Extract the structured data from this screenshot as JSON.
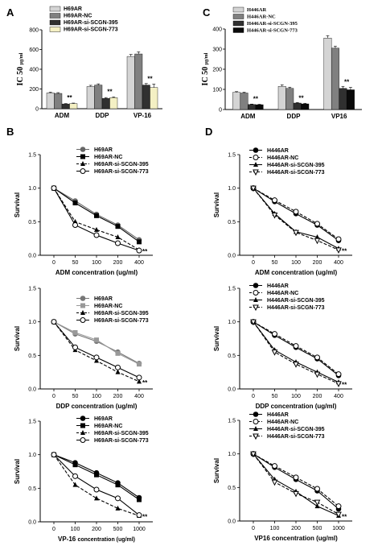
{
  "chart_data": [
    {
      "panel": "A",
      "type": "bar",
      "ylabel_main": "IC 50",
      "ylabel_unit": "μg/ml",
      "ylim": [
        0,
        800
      ],
      "yticks": [
        0,
        200,
        400,
        600,
        800
      ],
      "categories": [
        "ADM",
        "DDP",
        "VP-16"
      ],
      "series": [
        {
          "name": "H69AR",
          "values": [
            160,
            225,
            530
          ],
          "errors": [
            8,
            12,
            20
          ],
          "color": "#d4d4d4"
        },
        {
          "name": "H69AR-NC",
          "values": [
            155,
            240,
            555
          ],
          "errors": [
            8,
            12,
            22
          ],
          "color": "#808080"
        },
        {
          "name": "H69AR-si-SCGN-395",
          "values": [
            48,
            105,
            240
          ],
          "errors": [
            4,
            8,
            15
          ],
          "color": "#303030"
        },
        {
          "name": "H69AR-si-SCGN-773",
          "values": [
            52,
            112,
            215
          ],
          "errors": [
            5,
            8,
            35
          ],
          "color": "#f4f0c4"
        }
      ],
      "annotations": [
        "**",
        "**",
        "**"
      ]
    },
    {
      "panel": "C",
      "type": "bar",
      "ylabel_main": "IC 50",
      "ylabel_unit": "μg/ml",
      "ylim": [
        0,
        400
      ],
      "yticks": [
        0,
        100,
        200,
        300,
        400
      ],
      "categories": [
        "ADM",
        "DDP",
        "VP16"
      ],
      "series": [
        {
          "name": "H446AR",
          "values": [
            85,
            115,
            355
          ],
          "errors": [
            4,
            8,
            12
          ],
          "color": "#d4d4d4"
        },
        {
          "name": "H446AR-NC",
          "values": [
            82,
            105,
            305
          ],
          "errors": [
            4,
            6,
            10
          ],
          "color": "#808080"
        },
        {
          "name": "H446AR-si-SCGN-395",
          "values": [
            25,
            32,
            105
          ],
          "errors": [
            2,
            3,
            10
          ],
          "color": "#303030"
        },
        {
          "name": "H446AR-si-SCGN-773",
          "values": [
            24,
            28,
            98
          ],
          "errors": [
            2,
            3,
            12
          ],
          "color": "#0a0a0a"
        }
      ],
      "annotations": [
        "**",
        "**",
        "**"
      ]
    },
    {
      "panel": "B",
      "type": "line",
      "ylabel": "Survival",
      "xlabel": "ADM concentration (ug/ml)",
      "x": [
        "0",
        "50",
        "100",
        "200",
        "400"
      ],
      "ylim": [
        0,
        1.5
      ],
      "yticks": [
        "0.0",
        "0.5",
        "1.0",
        "1.5"
      ],
      "series": [
        {
          "name": "H69AR",
          "values": [
            1.0,
            0.81,
            0.61,
            0.45,
            0.23
          ],
          "marker": "filled-circle",
          "dash": false,
          "color": "#666666"
        },
        {
          "name": "H69AR-NC",
          "values": [
            1.0,
            0.78,
            0.59,
            0.43,
            0.2
          ],
          "marker": "filled-square",
          "dash": false,
          "color": "#000000"
        },
        {
          "name": "H69AR-si-SCGN-395",
          "values": [
            1.0,
            0.5,
            0.38,
            0.27,
            0.08
          ],
          "marker": "filled-triangle",
          "dash": true,
          "color": "#000000"
        },
        {
          "name": "H69AR-si-SCGN-773",
          "values": [
            1.0,
            0.45,
            0.3,
            0.18,
            0.07
          ],
          "marker": "open-circle",
          "dash": false,
          "color": "#000000"
        }
      ],
      "annotation": "**"
    },
    {
      "type": "line",
      "ylabel": "Survival",
      "xlabel": "DDP concentration (ug/ml)",
      "x": [
        "0",
        "50",
        "100",
        "200",
        "400"
      ],
      "ylim": [
        0,
        1.5
      ],
      "yticks": [
        "0.0",
        "0.5",
        "1.0",
        "1.5"
      ],
      "series": [
        {
          "name": "H69AR",
          "values": [
            1.0,
            0.82,
            0.71,
            0.55,
            0.38
          ],
          "marker": "filled-circle",
          "dash": false,
          "color": "#777777"
        },
        {
          "name": "H69AR-NC",
          "values": [
            1.0,
            0.84,
            0.73,
            0.53,
            0.37
          ],
          "marker": "filled-square",
          "dash": false,
          "color": "#999999"
        },
        {
          "name": "H69AR-si-SCGN-395",
          "values": [
            1.0,
            0.58,
            0.42,
            0.25,
            0.11
          ],
          "marker": "filled-triangle",
          "dash": true,
          "color": "#000000"
        },
        {
          "name": "H69AR-si-SCGN-773",
          "values": [
            1.0,
            0.62,
            0.47,
            0.32,
            0.17
          ],
          "marker": "open-circle",
          "dash": false,
          "color": "#000000"
        }
      ],
      "annotation": "**"
    },
    {
      "type": "line",
      "ylabel": "Survival",
      "xlabel_main": "VP-16",
      "xlabel_rest": "concentration (ug/ml)",
      "x": [
        "0",
        "100",
        "200",
        "500",
        "1000"
      ],
      "ylim": [
        0,
        1.5
      ],
      "yticks": [
        "0.0",
        "0.5",
        "1.0",
        "1.5"
      ],
      "series": [
        {
          "name": "H69AR",
          "values": [
            1.0,
            0.88,
            0.73,
            0.58,
            0.36
          ],
          "marker": "filled-circle",
          "dash": false,
          "color": "#000000"
        },
        {
          "name": "H69AR-NC",
          "values": [
            1.0,
            0.85,
            0.7,
            0.55,
            0.33
          ],
          "marker": "filled-square",
          "dash": false,
          "color": "#000000"
        },
        {
          "name": "H69AR-si-SCGN-395",
          "values": [
            1.0,
            0.55,
            0.35,
            0.2,
            0.09
          ],
          "marker": "filled-triangle",
          "dash": true,
          "color": "#000000"
        },
        {
          "name": "H69AR-si-SCGN-773",
          "values": [
            1.0,
            0.68,
            0.48,
            0.35,
            0.1
          ],
          "marker": "open-circle",
          "dash": false,
          "color": "#000000"
        }
      ],
      "annotation": "**"
    },
    {
      "panel": "D",
      "type": "line",
      "ylabel": "Survival",
      "xlabel": "ADM concentration (ug/ml)",
      "x": [
        "0",
        "50",
        "100",
        "200",
        "400"
      ],
      "ylim": [
        0,
        1.5
      ],
      "yticks": [
        "0.0",
        "0.5",
        "1.0",
        "1.5"
      ],
      "series": [
        {
          "name": "H446AR",
          "values": [
            1.0,
            0.8,
            0.62,
            0.45,
            0.22
          ],
          "marker": "filled-circle",
          "dash": false,
          "color": "#000000"
        },
        {
          "name": "H446AR-NC",
          "values": [
            1.0,
            0.82,
            0.65,
            0.47,
            0.24
          ],
          "marker": "open-circle",
          "dash": true,
          "color": "#000000"
        },
        {
          "name": "H446AR-si-SCGN-395",
          "values": [
            1.0,
            0.62,
            0.35,
            0.27,
            0.1
          ],
          "marker": "filled-triangle",
          "dash": false,
          "color": "#000000"
        },
        {
          "name": "H446AR-si-SCGN-773",
          "values": [
            1.0,
            0.6,
            0.34,
            0.22,
            0.08
          ],
          "marker": "open-triangle-down",
          "dash": true,
          "color": "#000000"
        }
      ],
      "annotation": "**"
    },
    {
      "type": "line",
      "ylabel": "Survival",
      "xlabel": "DDP concentration (ug/ml)",
      "x": [
        "0",
        "50",
        "100",
        "200",
        "400"
      ],
      "ylim": [
        0,
        1.5
      ],
      "yticks": [
        "0.0",
        "0.5",
        "1.0",
        "1.5"
      ],
      "series": [
        {
          "name": "H446AR",
          "values": [
            1.0,
            0.8,
            0.62,
            0.45,
            0.2
          ],
          "marker": "filled-circle",
          "dash": false,
          "color": "#000000"
        },
        {
          "name": "H446AR-NC",
          "values": [
            1.0,
            0.82,
            0.64,
            0.47,
            0.22
          ],
          "marker": "open-circle",
          "dash": true,
          "color": "#000000"
        },
        {
          "name": "H446AR-si-SCGN-395",
          "values": [
            1.0,
            0.58,
            0.4,
            0.25,
            0.1
          ],
          "marker": "filled-triangle",
          "dash": false,
          "color": "#000000"
        },
        {
          "name": "H446AR-si-SCGN-773",
          "values": [
            1.0,
            0.55,
            0.37,
            0.22,
            0.08
          ],
          "marker": "open-triangle-down",
          "dash": true,
          "color": "#000000"
        }
      ],
      "annotation": "**"
    },
    {
      "type": "line",
      "ylabel": "Survival",
      "xlabel": "VP16 concentration (ug/ml)",
      "x": [
        "0",
        "100",
        "200",
        "500",
        "1000"
      ],
      "ylim": [
        0,
        1.5
      ],
      "yticks": [
        "0.0",
        "0.5",
        "1.0",
        "1.5"
      ],
      "series": [
        {
          "name": "H446AR",
          "values": [
            1.0,
            0.8,
            0.62,
            0.45,
            0.18
          ],
          "marker": "filled-circle",
          "dash": false,
          "color": "#000000"
        },
        {
          "name": "H446AR-NC",
          "values": [
            1.0,
            0.82,
            0.65,
            0.48,
            0.22
          ],
          "marker": "open-circle",
          "dash": true,
          "color": "#000000"
        },
        {
          "name": "H446AR-si-SCGN-395",
          "values": [
            1.0,
            0.62,
            0.44,
            0.22,
            0.08
          ],
          "marker": "filled-triangle",
          "dash": false,
          "color": "#000000"
        },
        {
          "name": "H446AR-si-SCGN-773",
          "values": [
            1.0,
            0.58,
            0.41,
            0.28,
            0.1
          ],
          "marker": "open-triangle-down",
          "dash": true,
          "color": "#000000"
        }
      ],
      "annotation": "**"
    }
  ]
}
